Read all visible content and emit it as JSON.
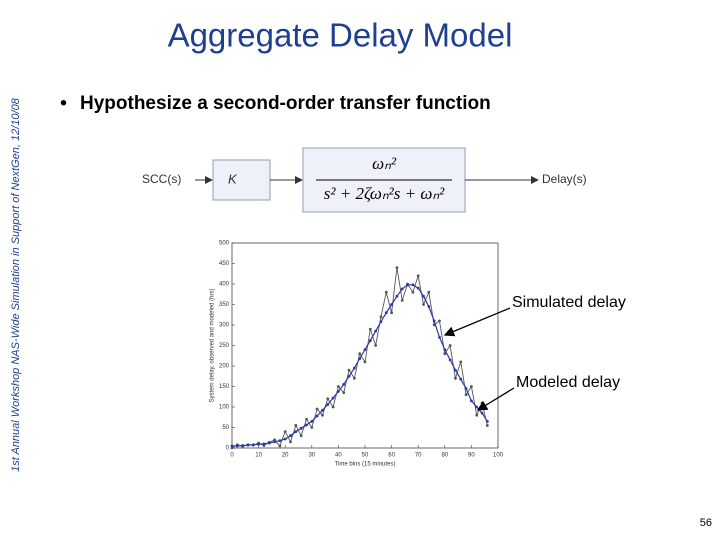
{
  "slide": {
    "title": "Aggregate Delay Model",
    "side_note": "1st Annual Workshop NAS-Wide Simulation in Support of NextGen, 12/10/08",
    "bullets": [
      "Hypothesize a second-order transfer function"
    ],
    "page_number": "56"
  },
  "diagram": {
    "input": "SCC(s)",
    "gain": "K",
    "numerator": "ωₙ²",
    "denominator": "s² + 2ζωₙ²s + ωₙ²",
    "output": "Delay(s)"
  },
  "chart_data": {
    "type": "line",
    "x_label": "Time bins (15 minutes)",
    "y_label": "System delay, observed and modeled (hrs)",
    "x": [
      0,
      2,
      4,
      6,
      8,
      10,
      12,
      14,
      16,
      18,
      20,
      22,
      24,
      26,
      28,
      30,
      32,
      34,
      36,
      38,
      40,
      42,
      44,
      46,
      48,
      50,
      52,
      54,
      56,
      58,
      60,
      62,
      64,
      66,
      68,
      70,
      72,
      74,
      76,
      78,
      80,
      82,
      84,
      86,
      88,
      90,
      92,
      94,
      96
    ],
    "series": [
      {
        "name": "Simulated delay",
        "color": "#555555",
        "values": [
          0,
          8,
          4,
          8,
          7,
          12,
          6,
          14,
          20,
          5,
          40,
          15,
          55,
          30,
          70,
          50,
          95,
          80,
          120,
          100,
          150,
          135,
          190,
          170,
          230,
          210,
          290,
          250,
          320,
          380,
          330,
          440,
          360,
          400,
          380,
          420,
          350,
          380,
          300,
          310,
          230,
          250,
          170,
          210,
          130,
          150,
          80,
          110,
          55
        ]
      },
      {
        "name": "Modeled delay",
        "color": "#2a3aa8",
        "values": [
          5,
          5,
          6,
          7,
          8,
          9,
          10,
          12,
          15,
          18,
          22,
          30,
          40,
          48,
          56,
          65,
          78,
          92,
          106,
          122,
          138,
          155,
          175,
          195,
          218,
          240,
          262,
          285,
          308,
          330,
          350,
          370,
          388,
          398,
          398,
          390,
          370,
          345,
          310,
          270,
          240,
          215,
          190,
          168,
          145,
          115,
          100,
          85,
          65
        ]
      }
    ],
    "xlim": [
      0,
      100
    ],
    "ylim": [
      0,
      500
    ],
    "xticks": [
      0,
      10,
      20,
      30,
      40,
      50,
      60,
      70,
      80,
      90,
      100
    ],
    "yticks": [
      0,
      50,
      100,
      150,
      200,
      250,
      300,
      350,
      400,
      450,
      500
    ]
  }
}
